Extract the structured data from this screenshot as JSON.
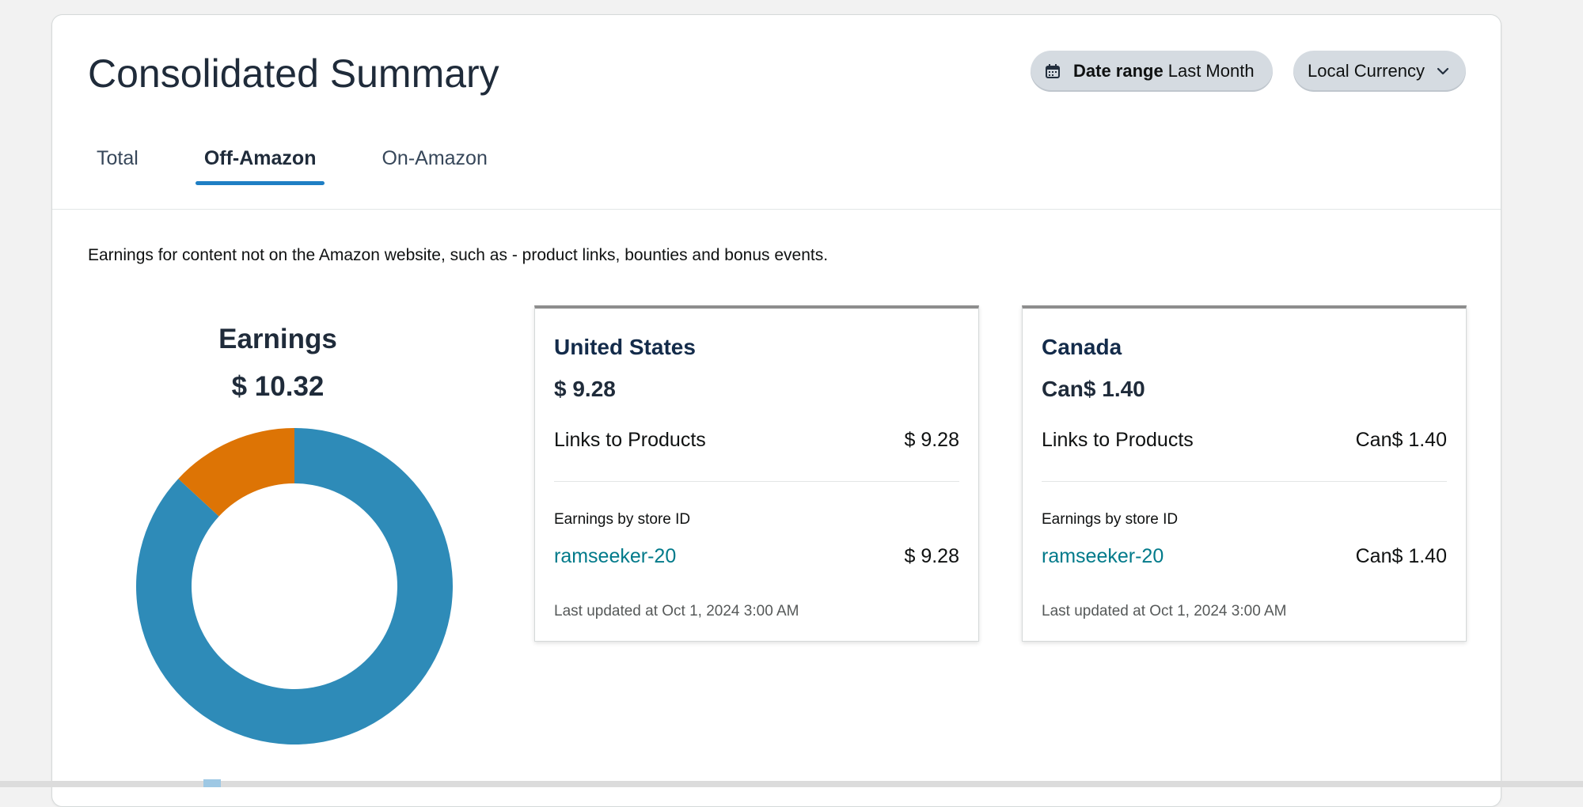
{
  "header": {
    "title": "Consolidated Summary",
    "date_range": {
      "label": "Date range",
      "value": "Last Month",
      "icon": "calendar-icon"
    },
    "currency": {
      "label": "Local Currency",
      "icon": "chevron-down-icon"
    }
  },
  "tabs": [
    {
      "label": "Total",
      "active": false
    },
    {
      "label": "Off-Amazon",
      "active": true
    },
    {
      "label": "On-Amazon",
      "active": false
    }
  ],
  "description": "Earnings for content not on the Amazon website, such as - product links, bounties and bonus events.",
  "earnings": {
    "label": "Earnings",
    "total": "$ 10.32"
  },
  "chart_data": {
    "type": "pie",
    "donut": true,
    "title": "Earnings",
    "categories": [
      "United States",
      "Canada"
    ],
    "values": [
      9.28,
      1.4
    ],
    "colors": [
      "#2e8bb8",
      "#dd7405"
    ]
  },
  "cards": [
    {
      "country": "United States",
      "amount": "$ 9.28",
      "links_label": "Links to Products",
      "links_value": "$ 9.28",
      "store_heading": "Earnings by store ID",
      "store_id": "ramseeker-20",
      "store_value": "$ 9.28",
      "updated": "Last updated at Oct 1, 2024 3:00 AM"
    },
    {
      "country": "Canada",
      "amount": "Can$ 1.40",
      "links_label": "Links to Products",
      "links_value": "Can$ 1.40",
      "store_heading": "Earnings by store ID",
      "store_id": "ramseeker-20",
      "store_value": "Can$ 1.40",
      "updated": "Last updated at Oct 1, 2024 3:00 AM"
    }
  ]
}
